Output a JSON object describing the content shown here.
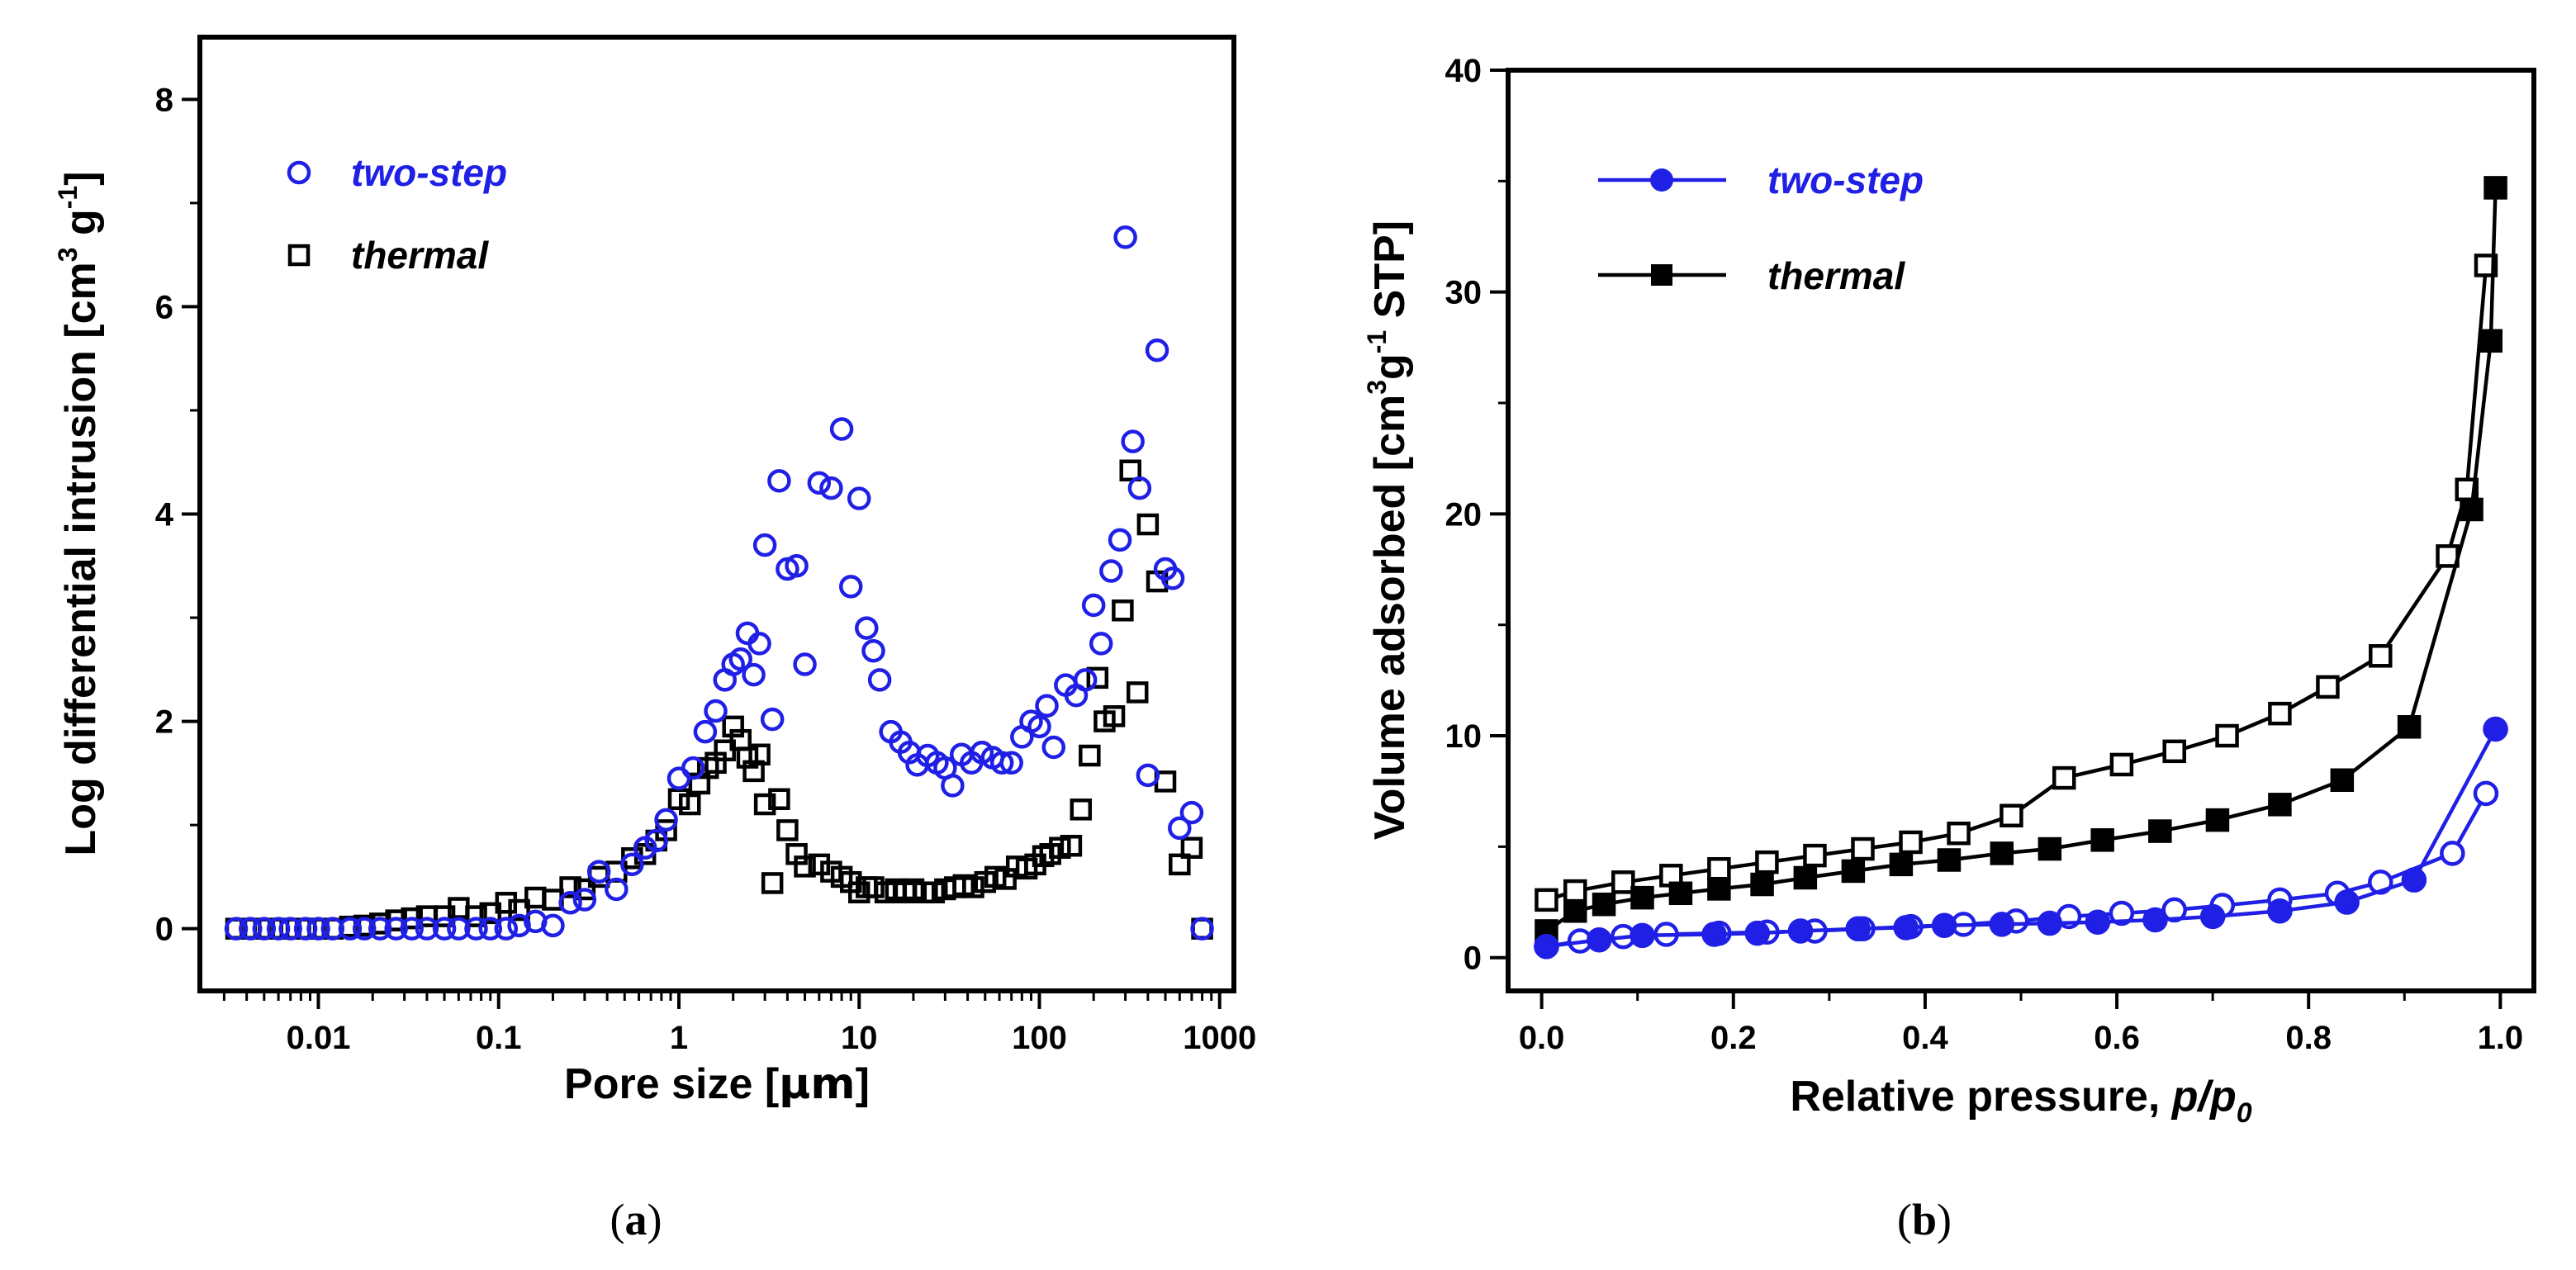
{
  "chart_data": [
    {
      "panel": "(a)",
      "panel_letter": "a",
      "type": "scatter",
      "xscale": "log",
      "xlabel_prefix": "Pore size [",
      "xlabel_unit": "μm",
      "xlabel_suffix": "]",
      "ylabel_prefix": "Log differential intrusion [cm",
      "ylabel_sup1": "3",
      "ylabel_mid": " g",
      "ylabel_sup2": "-1",
      "ylabel_suffix": "]",
      "xlim": [
        0.0022,
        1200
      ],
      "ylim": [
        -0.6,
        8.6
      ],
      "xticks": [
        0.01,
        0.1,
        1,
        10,
        100,
        1000
      ],
      "xtick_labels": [
        "0.01",
        "0.1",
        "1",
        "10",
        "100",
        "1000"
      ],
      "yticks": [
        0,
        2,
        4,
        6,
        8
      ],
      "ytick_labels": [
        "0",
        "2",
        "4",
        "6",
        "8"
      ],
      "legend_position": "top-left",
      "series": [
        {
          "name": "two-step",
          "color": "#1f1fe6",
          "marker": "open-circle",
          "x": [
            0.0035,
            0.0042,
            0.005,
            0.006,
            0.007,
            0.0085,
            0.01,
            0.012,
            0.015,
            0.018,
            0.022,
            0.027,
            0.033,
            0.04,
            0.05,
            0.06,
            0.075,
            0.09,
            0.11,
            0.13,
            0.16,
            0.2,
            0.25,
            0.3,
            0.36,
            0.45,
            0.55,
            0.65,
            0.75,
            0.85,
            1.0,
            1.2,
            1.4,
            1.6,
            1.8,
            2.0,
            2.2,
            2.4,
            2.6,
            2.8,
            3.0,
            3.3,
            3.6,
            4.0,
            4.5,
            5.0,
            6.0,
            7.0,
            8.0,
            9.0,
            10,
            11,
            12,
            13,
            15,
            17,
            19,
            21,
            24,
            27,
            30,
            33,
            37,
            42,
            48,
            55,
            62,
            70,
            80,
            90,
            100,
            110,
            120,
            140,
            160,
            180,
            200,
            220,
            250,
            280,
            300,
            330,
            360,
            400,
            450,
            500,
            550,
            600,
            700,
            800
          ],
          "y": [
            0,
            0,
            0,
            0,
            0,
            0,
            0,
            0,
            0,
            0,
            0,
            0,
            0,
            0,
            0,
            0,
            0,
            0,
            0,
            0.03,
            0.07,
            0.03,
            0.25,
            0.28,
            0.55,
            0.38,
            0.62,
            0.78,
            0.85,
            1.05,
            1.45,
            1.55,
            1.9,
            2.1,
            2.4,
            2.55,
            2.6,
            2.85,
            2.45,
            2.75,
            3.7,
            2.02,
            4.32,
            3.47,
            3.5,
            2.55,
            4.3,
            4.25,
            4.82,
            3.3,
            4.15,
            2.9,
            2.68,
            2.4,
            1.9,
            1.8,
            1.7,
            1.58,
            1.67,
            1.6,
            1.55,
            1.38,
            1.68,
            1.6,
            1.7,
            1.65,
            1.6,
            1.6,
            1.85,
            2.0,
            1.95,
            2.15,
            1.75,
            2.35,
            2.25,
            2.4,
            3.12,
            2.75,
            3.45,
            3.75,
            6.67,
            4.7,
            4.25,
            1.48,
            5.58,
            3.47,
            3.38,
            0.97,
            1.12,
            0
          ]
        },
        {
          "name": "thermal",
          "color": "#000000",
          "marker": "open-square",
          "x": [
            0.0035,
            0.0042,
            0.005,
            0.006,
            0.007,
            0.0085,
            0.01,
            0.012,
            0.015,
            0.018,
            0.022,
            0.027,
            0.033,
            0.04,
            0.05,
            0.06,
            0.075,
            0.09,
            0.11,
            0.13,
            0.16,
            0.2,
            0.25,
            0.3,
            0.36,
            0.45,
            0.55,
            0.65,
            0.75,
            0.85,
            1.0,
            1.15,
            1.3,
            1.45,
            1.6,
            1.8,
            2.0,
            2.2,
            2.4,
            2.6,
            2.8,
            3.0,
            3.3,
            3.6,
            4.0,
            4.5,
            5.0,
            6.0,
            7.0,
            8.0,
            9.0,
            10,
            11,
            12,
            14,
            16,
            18,
            20,
            23,
            26,
            30,
            34,
            38,
            43,
            50,
            57,
            65,
            75,
            85,
            95,
            105,
            115,
            130,
            150,
            170,
            190,
            210,
            230,
            260,
            290,
            320,
            350,
            400,
            450,
            500,
            600,
            700,
            800
          ],
          "y": [
            0,
            0,
            0,
            0,
            0,
            0,
            0,
            0,
            0.02,
            0.03,
            0.05,
            0.08,
            0.1,
            0.12,
            0.12,
            0.2,
            0.12,
            0.15,
            0.25,
            0.18,
            0.3,
            0.28,
            0.4,
            0.38,
            0.5,
            0.55,
            0.68,
            0.72,
            0.85,
            0.95,
            1.25,
            1.2,
            1.4,
            1.55,
            1.6,
            1.72,
            1.95,
            1.82,
            1.65,
            1.52,
            1.68,
            1.2,
            0.44,
            1.25,
            0.95,
            0.72,
            0.6,
            0.62,
            0.55,
            0.5,
            0.45,
            0.35,
            0.4,
            0.4,
            0.35,
            0.38,
            0.35,
            0.38,
            0.35,
            0.35,
            0.38,
            0.4,
            0.42,
            0.4,
            0.45,
            0.5,
            0.48,
            0.6,
            0.58,
            0.62,
            0.7,
            0.72,
            0.78,
            0.8,
            1.15,
            1.67,
            2.42,
            2.0,
            2.05,
            3.07,
            4.42,
            2.28,
            3.9,
            3.35,
            1.42,
            0.62,
            0.78,
            0
          ]
        }
      ]
    },
    {
      "panel": "(b)",
      "panel_letter": "b",
      "type": "line",
      "xlabel": "Relative pressure, ",
      "xlabel_italic": "p/p",
      "xlabel_sub": "0",
      "ylabel_prefix": "Volume adsorbed [cm",
      "ylabel_sup1": "3",
      "ylabel_mid": "g",
      "ylabel_sup2": "-1",
      "ylabel_suffix": " STP]",
      "xlim": [
        -0.035,
        1.035
      ],
      "ylim": [
        -1.5,
        40
      ],
      "xticks": [
        0.0,
        0.2,
        0.4,
        0.6,
        0.8,
        1.0
      ],
      "xtick_labels": [
        "0.0",
        "0.2",
        "0.4",
        "0.6",
        "0.8",
        "1.0"
      ],
      "yticks": [
        0,
        10,
        20,
        30,
        40
      ],
      "ytick_labels": [
        "0",
        "10",
        "20",
        "30",
        "40"
      ],
      "legend_position": "top-left",
      "series": [
        {
          "name": "two-step",
          "color": "#1f1fe6",
          "adsorption": {
            "marker": "filled-circle",
            "x": [
              0.005,
              0.06,
              0.105,
              0.18,
              0.225,
              0.27,
              0.33,
              0.38,
              0.42,
              0.48,
              0.53,
              0.58,
              0.64,
              0.7,
              0.77,
              0.84,
              0.91,
              0.995
            ],
            "y": [
              0.5,
              0.8,
              1.0,
              1.05,
              1.1,
              1.2,
              1.3,
              1.35,
              1.45,
              1.5,
              1.55,
              1.6,
              1.7,
              1.85,
              2.1,
              2.5,
              3.5,
              10.3
            ]
          },
          "desorption": {
            "marker": "open-circle",
            "x": [
              0.005,
              0.04,
              0.085,
              0.13,
              0.185,
              0.235,
              0.285,
              0.335,
              0.385,
              0.44,
              0.495,
              0.55,
              0.605,
              0.66,
              0.71,
              0.77,
              0.83,
              0.875,
              0.95,
              0.985
            ],
            "y": [
              0.5,
              0.75,
              0.95,
              1.05,
              1.1,
              1.15,
              1.2,
              1.3,
              1.4,
              1.5,
              1.65,
              1.85,
              2.0,
              2.15,
              2.35,
              2.6,
              2.9,
              3.4,
              4.7,
              7.4
            ]
          }
        },
        {
          "name": "thermal",
          "color": "#000000",
          "adsorption": {
            "marker": "filled-square",
            "x": [
              0.005,
              0.035,
              0.065,
              0.105,
              0.145,
              0.185,
              0.23,
              0.275,
              0.325,
              0.375,
              0.425,
              0.48,
              0.53,
              0.585,
              0.645,
              0.705,
              0.77,
              0.835,
              0.905,
              0.97,
              0.99,
              0.995
            ],
            "y": [
              1.2,
              2.1,
              2.4,
              2.7,
              2.9,
              3.1,
              3.3,
              3.6,
              3.9,
              4.2,
              4.4,
              4.7,
              4.9,
              5.3,
              5.7,
              6.2,
              6.9,
              8.0,
              10.4,
              20.2,
              27.8,
              34.7
            ]
          },
          "desorption": {
            "marker": "open-square",
            "x": [
              0.005,
              0.035,
              0.085,
              0.135,
              0.185,
              0.235,
              0.285,
              0.335,
              0.385,
              0.435,
              0.49,
              0.545,
              0.605,
              0.66,
              0.715,
              0.77,
              0.82,
              0.875,
              0.945,
              0.965,
              0.985
            ],
            "y": [
              2.6,
              3.0,
              3.4,
              3.7,
              4.0,
              4.3,
              4.6,
              4.9,
              5.2,
              5.6,
              6.4,
              8.1,
              8.7,
              9.3,
              10.0,
              11.0,
              12.2,
              13.6,
              18.1,
              21.1,
              31.2
            ]
          }
        }
      ]
    }
  ]
}
